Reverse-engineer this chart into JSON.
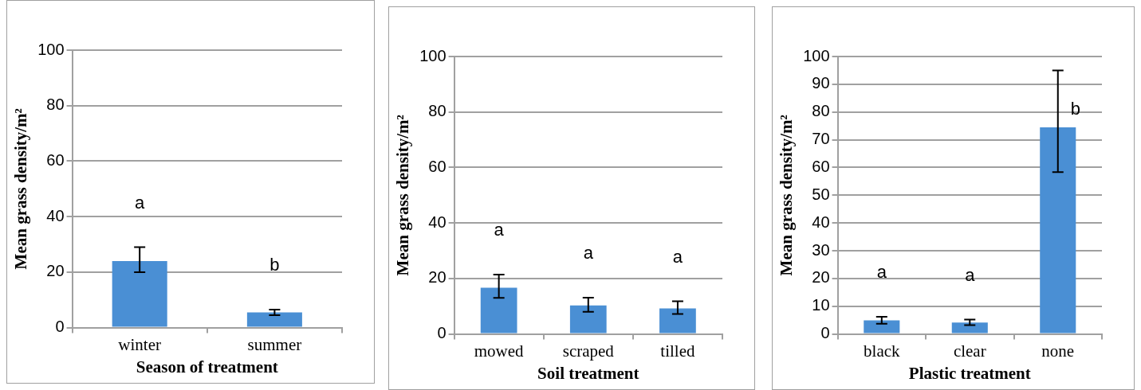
{
  "chart_data": [
    {
      "type": "bar",
      "categories": [
        "winter",
        "summer"
      ],
      "values": [
        24,
        5.5
      ],
      "errors": [
        [
          20,
          29
        ],
        [
          4.5,
          6.5
        ]
      ],
      "color": "#4a8fd4",
      "ylim": [
        0,
        100
      ],
      "yticks": [
        0,
        20,
        40,
        60,
        80,
        100
      ],
      "grid": "y",
      "xlabel": "Season of treatment",
      "ylabel": "Mean grass density/m²",
      "annotations": [
        "a",
        "b"
      ]
    },
    {
      "type": "bar",
      "categories": [
        "mowed",
        "scraped",
        "tilled"
      ],
      "values": [
        16.7,
        10.3,
        9.2
      ],
      "errors": [
        [
          13,
          21.4
        ],
        [
          8,
          13.1
        ],
        [
          7.2,
          11.8
        ]
      ],
      "color": "#4a8fd4",
      "ylim": [
        0,
        100
      ],
      "yticks": [
        0,
        20,
        40,
        60,
        80,
        100
      ],
      "grid": "y",
      "xlabel": "Soil treatment",
      "ylabel": "Mean grass density/m²",
      "annotations": [
        "a",
        "a",
        "a"
      ]
    },
    {
      "type": "bar",
      "categories": [
        "black",
        "clear",
        "none"
      ],
      "values": [
        4.9,
        4.1,
        74.5
      ],
      "errors": [
        [
          3.7,
          6.2
        ],
        [
          3.2,
          5.2
        ],
        [
          58.3,
          95
        ]
      ],
      "color": "#4a8fd4",
      "ylim": [
        0,
        100
      ],
      "yticks": [
        0,
        10,
        20,
        30,
        40,
        50,
        60,
        70,
        80,
        90,
        100
      ],
      "grid": "y",
      "xlabel": "Plastic treatment",
      "ylabel": "Mean grass density/m²",
      "annotations": [
        "a",
        "a",
        "b"
      ]
    }
  ]
}
